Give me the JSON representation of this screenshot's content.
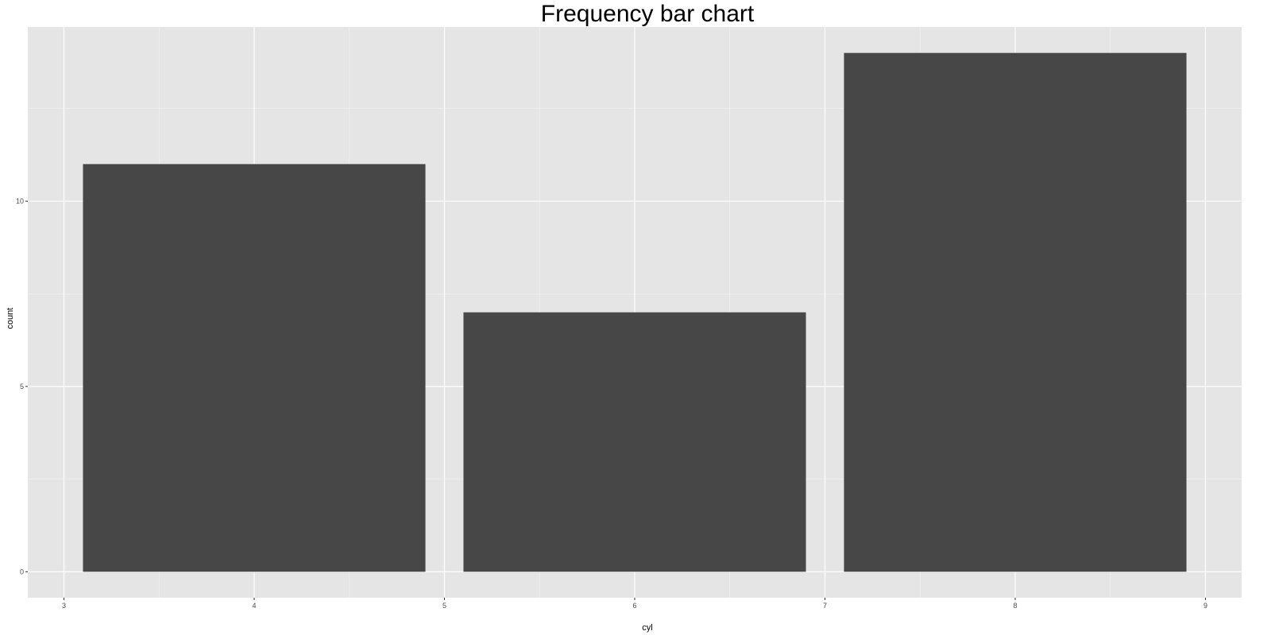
{
  "chart_data": {
    "type": "bar",
    "title": "Frequency bar chart",
    "xlabel": "cyl",
    "ylabel": "count",
    "x": [
      4,
      6,
      8
    ],
    "values": [
      11,
      7,
      14
    ],
    "bar_width": 1.8,
    "xlim": [
      2.81,
      9.19
    ],
    "ylim": [
      -0.7,
      14.7
    ],
    "x_ticks": [
      3,
      4,
      5,
      6,
      7,
      8,
      9
    ],
    "x_tick_labels": [
      "3",
      "4",
      "5",
      "6",
      "7",
      "8",
      "9"
    ],
    "y_ticks": [
      0,
      5,
      10
    ],
    "y_tick_labels": [
      "0",
      "5",
      "10"
    ],
    "x_minor_ticks": [
      3.5,
      4.5,
      5.5,
      6.5,
      7.5,
      8.5
    ],
    "y_minor_ticks": [
      2.5,
      7.5,
      12.5
    ],
    "grid": true,
    "colors": {
      "panel_background": "#e5e5e5",
      "grid_major": "#ffffff",
      "grid_minor": "#f2f2f2",
      "bar_fill": "#474747",
      "tick_mark": "#333333"
    }
  }
}
